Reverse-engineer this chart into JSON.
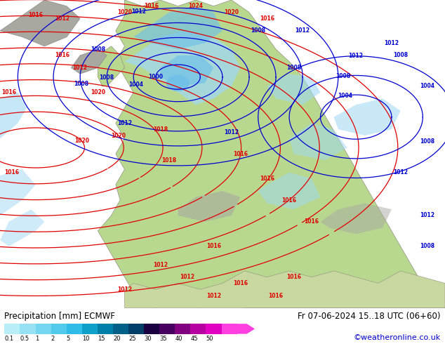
{
  "title_left": "Precipitation [mm] ECMWF",
  "title_right": "Fr 07-06-2024 15..18 UTC (06+60)",
  "credit": "©weatheronline.co.uk",
  "colorbar_labels": [
    "0.1",
    "0.5",
    "1",
    "2",
    "5",
    "10",
    "15",
    "20",
    "25",
    "30",
    "35",
    "40",
    "45",
    "50"
  ],
  "colorbar_colors": [
    "#b8eef8",
    "#96e2f4",
    "#74d6f0",
    "#52caec",
    "#30bce8",
    "#0ea0c8",
    "#0080a8",
    "#006088",
    "#004068",
    "#1a0040",
    "#480060",
    "#800080",
    "#b800a0",
    "#e000c0",
    "#ff40e0"
  ],
  "sea_color": "#e8e8e8",
  "land_color_green": "#b8d890",
  "land_color_light": "#d0e8b0",
  "gray_color": "#a8a8a0",
  "precip_light_blue": "#a0d8f4",
  "precip_mid_blue": "#70c0e8",
  "precip_dark_blue": "#3090c8",
  "red_contour": "#e00000",
  "blue_contour": "#0000d0",
  "bg_color": "#ffffff",
  "fig_width": 6.34,
  "fig_height": 4.9,
  "dpi": 100
}
